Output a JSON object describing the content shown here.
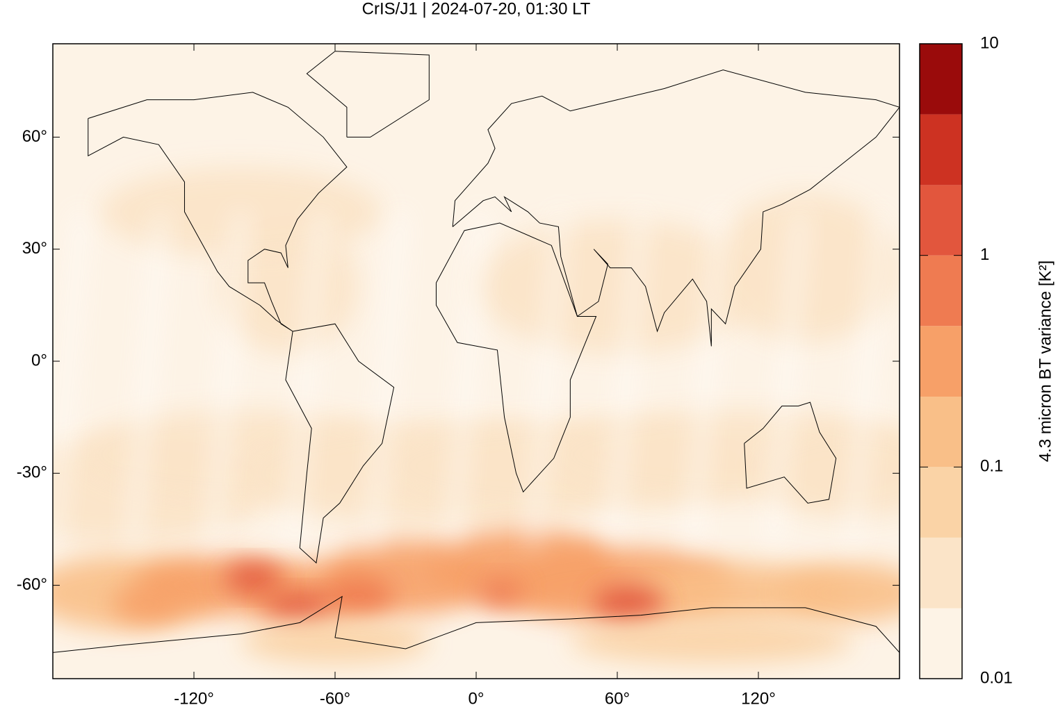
{
  "chart_data": {
    "type": "heatmap",
    "title": "CrIS/J1 | 2024-07-20, 01:30 LT",
    "xlim": [
      -180,
      180
    ],
    "ylim": [
      -85,
      85
    ],
    "xticks": [
      {
        "value": -120,
        "label": "-120°"
      },
      {
        "value": -60,
        "label": "-60°"
      },
      {
        "value": 0,
        "label": "0°"
      },
      {
        "value": 60,
        "label": "60°"
      },
      {
        "value": 120,
        "label": "120°"
      }
    ],
    "yticks": [
      {
        "value": -60,
        "label": "-60°"
      },
      {
        "value": -30,
        "label": "-30°"
      },
      {
        "value": 0,
        "label": "0°"
      },
      {
        "value": 30,
        "label": "30°"
      },
      {
        "value": 60,
        "label": "60°"
      }
    ],
    "colorbar": {
      "label": "4.3 micron BT variance [K²]",
      "scale": "log",
      "lim": [
        0.01,
        10
      ],
      "ticks": [
        0.01,
        0.1,
        1,
        10
      ],
      "levels": [
        0.01,
        0.0215,
        0.0464,
        0.1,
        0.215,
        0.464,
        1,
        2.15,
        4.64,
        10
      ],
      "colors": [
        "#fdf3e6",
        "#fbe4c8",
        "#fad3a6",
        "#f9bf88",
        "#f7a068",
        "#ef7b51",
        "#e2563d",
        "#cd3222",
        "#9a0b0b"
      ]
    }
  }
}
